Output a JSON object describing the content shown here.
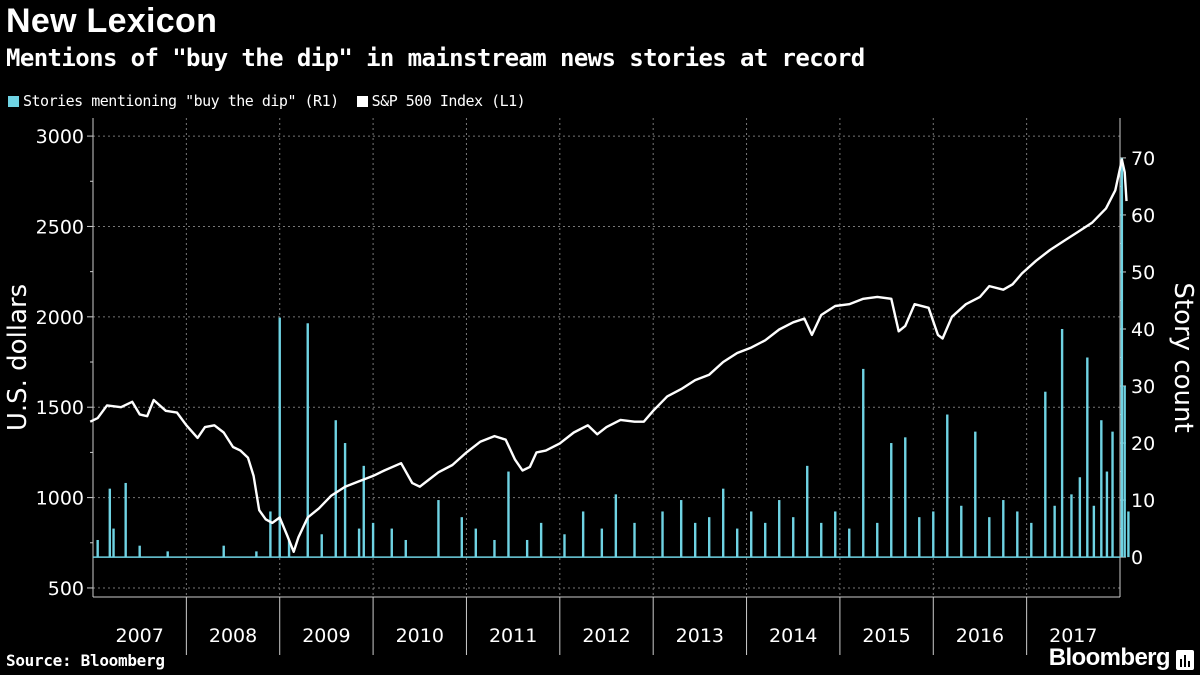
{
  "header": {
    "title": "New Lexicon",
    "subtitle": "Mentions of \"buy the dip\" in mainstream news stories at record"
  },
  "footer": {
    "source": "Source: Bloomberg",
    "brand": "Bloomberg"
  },
  "colors": {
    "background": "#000000",
    "bars": "#6fd3e3",
    "line": "#ffffff",
    "grid": "#777777"
  },
  "chart_data": {
    "type": "bar",
    "title": "Mentions of \"buy the dip\" in mainstream news stories at record",
    "legend_position": "top-left",
    "grid": true,
    "x_categories": [
      "2007",
      "2008",
      "2009",
      "2010",
      "2011",
      "2012",
      "2013",
      "2014",
      "2015",
      "2016",
      "2017"
    ],
    "y_left": {
      "label": "U.S. dollars",
      "range": [
        450,
        3100
      ],
      "ticks": [
        500,
        1000,
        1500,
        2000,
        2500,
        3000
      ]
    },
    "y_right": {
      "label": "Story count",
      "range": [
        -7,
        77
      ],
      "ticks": [
        0,
        10,
        20,
        30,
        40,
        50,
        60,
        70
      ]
    },
    "series": [
      {
        "name": "Stories mentioning \"buy the dip\" (R1)",
        "type": "bar",
        "axis": "right",
        "color": "#6fd3e3",
        "x": [
          2007.05,
          2007.18,
          2007.22,
          2007.35,
          2007.5,
          2007.8,
          2008.4,
          2008.75,
          2008.9,
          2009.0,
          2009.1,
          2009.3,
          2009.45,
          2009.6,
          2009.7,
          2009.85,
          2009.9,
          2010.0,
          2010.2,
          2010.35,
          2010.7,
          2010.95,
          2011.1,
          2011.3,
          2011.45,
          2011.65,
          2011.8,
          2012.05,
          2012.25,
          2012.45,
          2012.6,
          2012.8,
          2013.1,
          2013.3,
          2013.45,
          2013.6,
          2013.75,
          2013.9,
          2014.05,
          2014.2,
          2014.35,
          2014.5,
          2014.65,
          2014.8,
          2014.95,
          2015.1,
          2015.25,
          2015.4,
          2015.55,
          2015.7,
          2015.85,
          2016.0,
          2016.15,
          2016.3,
          2016.45,
          2016.6,
          2016.75,
          2016.9,
          2017.05,
          2017.2,
          2017.3,
          2017.38,
          2017.48,
          2017.57,
          2017.65,
          2017.72,
          2017.8,
          2017.86,
          2017.92,
          2018.02,
          2018.05,
          2018.09
        ],
        "values": [
          3,
          12,
          5,
          13,
          2,
          1,
          2,
          1,
          8,
          42,
          3,
          41,
          4,
          24,
          20,
          5,
          16,
          6,
          5,
          3,
          10,
          7,
          5,
          3,
          15,
          3,
          6,
          4,
          8,
          5,
          11,
          6,
          8,
          10,
          6,
          7,
          12,
          5,
          8,
          6,
          10,
          7,
          16,
          6,
          8,
          5,
          33,
          6,
          20,
          21,
          7,
          8,
          25,
          9,
          22,
          7,
          10,
          8,
          6,
          29,
          9,
          40,
          11,
          14,
          35,
          9,
          24,
          15,
          22,
          70,
          30,
          8
        ]
      },
      {
        "name": "S&P 500 Index (L1)",
        "type": "line",
        "axis": "left",
        "color": "#ffffff",
        "x": [
          2006.97,
          2007.05,
          2007.15,
          2007.3,
          2007.42,
          2007.5,
          2007.58,
          2007.65,
          2007.78,
          2007.9,
          2008.0,
          2008.12,
          2008.2,
          2008.3,
          2008.4,
          2008.5,
          2008.58,
          2008.66,
          2008.72,
          2008.78,
          2008.85,
          2008.92,
          2009.0,
          2009.08,
          2009.15,
          2009.2,
          2009.3,
          2009.42,
          2009.55,
          2009.7,
          2009.85,
          2010.0,
          2010.12,
          2010.3,
          2010.42,
          2010.5,
          2010.6,
          2010.7,
          2010.85,
          2011.0,
          2011.15,
          2011.3,
          2011.42,
          2011.52,
          2011.6,
          2011.68,
          2011.75,
          2011.85,
          2012.0,
          2012.15,
          2012.3,
          2012.4,
          2012.5,
          2012.65,
          2012.8,
          2012.9,
          2013.0,
          2013.15,
          2013.3,
          2013.45,
          2013.6,
          2013.75,
          2013.9,
          2014.05,
          2014.2,
          2014.35,
          2014.5,
          2014.62,
          2014.7,
          2014.8,
          2014.95,
          2015.1,
          2015.25,
          2015.4,
          2015.55,
          2015.63,
          2015.7,
          2015.8,
          2015.95,
          2016.05,
          2016.1,
          2016.2,
          2016.35,
          2016.5,
          2016.6,
          2016.75,
          2016.85,
          2016.95,
          2017.1,
          2017.25,
          2017.4,
          2017.55,
          2017.7,
          2017.85,
          2017.95,
          2018.02,
          2018.05,
          2018.07
        ],
        "values": [
          1420,
          1440,
          1510,
          1500,
          1530,
          1460,
          1450,
          1540,
          1480,
          1470,
          1400,
          1330,
          1390,
          1400,
          1360,
          1280,
          1260,
          1220,
          1120,
          930,
          880,
          860,
          890,
          790,
          700,
          780,
          890,
          940,
          1010,
          1060,
          1090,
          1120,
          1150,
          1190,
          1080,
          1060,
          1100,
          1140,
          1180,
          1250,
          1310,
          1340,
          1320,
          1210,
          1150,
          1170,
          1250,
          1260,
          1300,
          1360,
          1400,
          1350,
          1390,
          1430,
          1420,
          1420,
          1480,
          1560,
          1600,
          1650,
          1680,
          1750,
          1800,
          1830,
          1870,
          1930,
          1970,
          1990,
          1900,
          2010,
          2060,
          2070,
          2100,
          2110,
          2100,
          1920,
          1950,
          2070,
          2050,
          1900,
          1880,
          2000,
          2070,
          2110,
          2170,
          2150,
          2180,
          2240,
          2310,
          2370,
          2420,
          2470,
          2520,
          2600,
          2700,
          2870,
          2800,
          2640
        ]
      }
    ]
  }
}
